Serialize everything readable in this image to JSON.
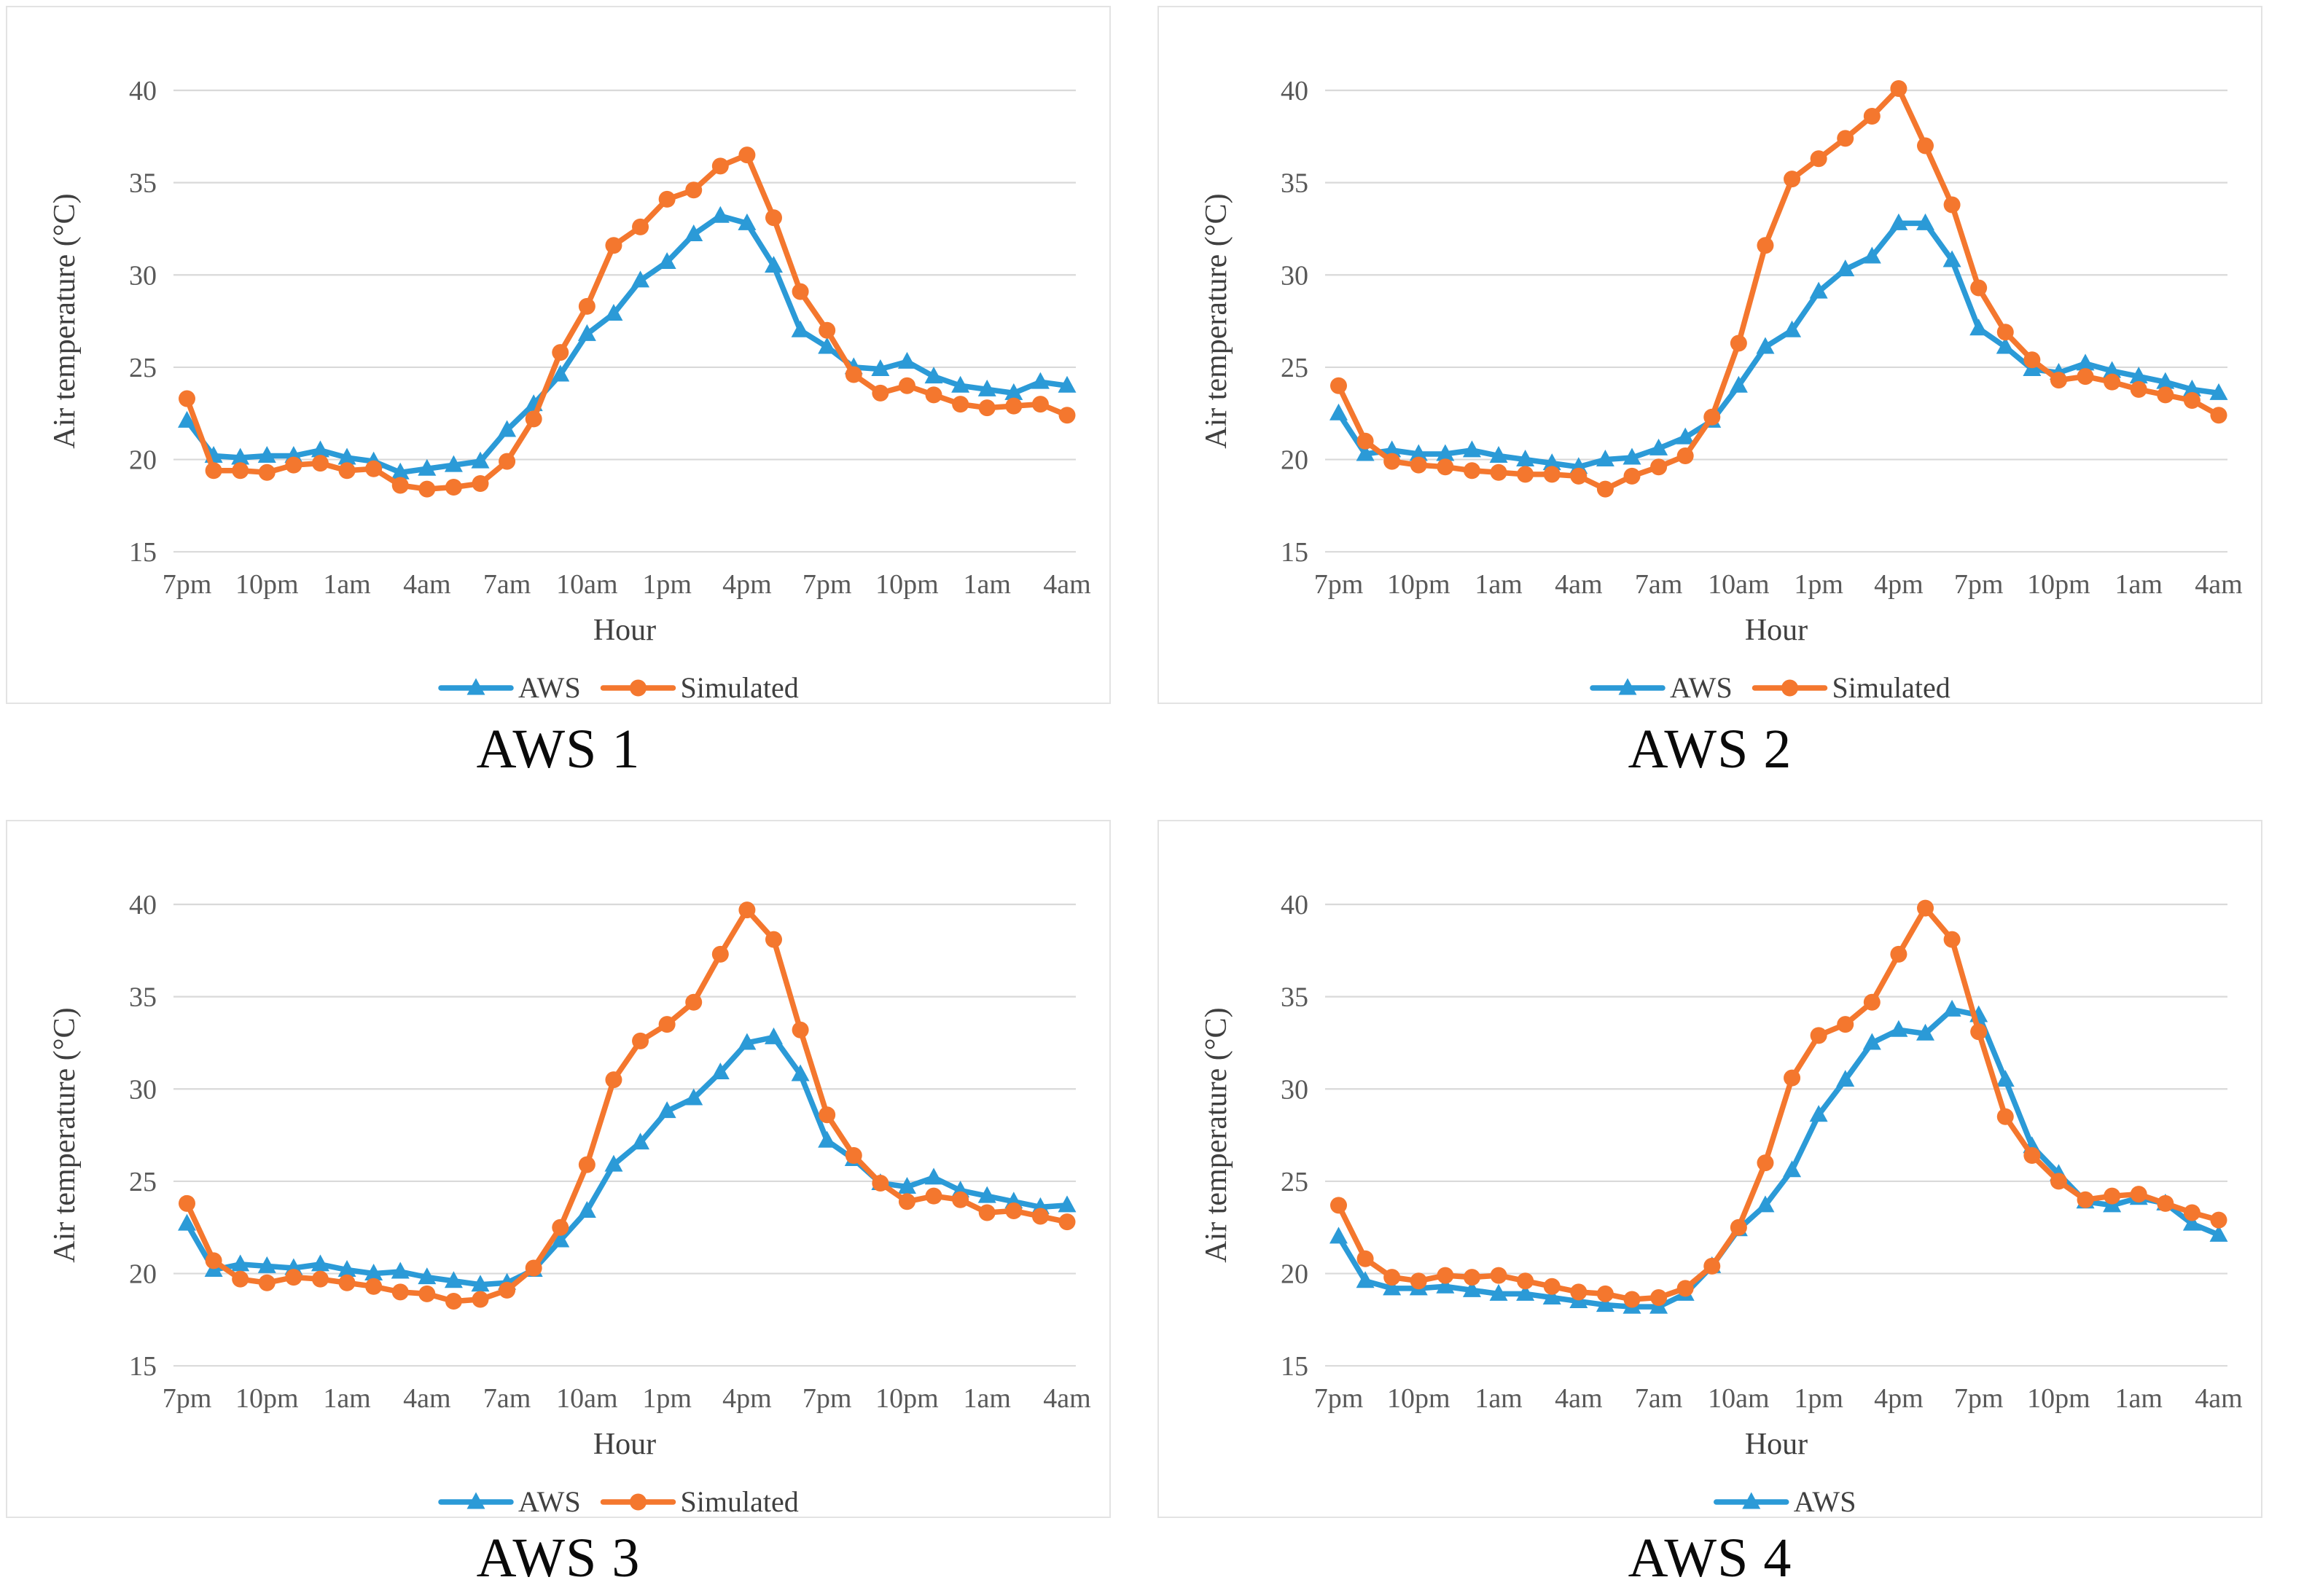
{
  "styles": {
    "series_blue": "#2b9ad7",
    "series_orange": "#f4772e",
    "grid_color": "#d9d9d9",
    "axis_tick_color": "#595959",
    "axis_title_color": "#3f3f3f",
    "legend_text_color": "#404040",
    "caption_color": "#0a0a0a",
    "panel_border_color": "#e3e3e3",
    "background": "#ffffff"
  },
  "chart_data": {
    "type": "line",
    "y_title": "Air temperature (°C)",
    "x_title": "Hour",
    "ylim": [
      15,
      40
    ],
    "y_ticks": [
      40,
      35,
      30,
      25,
      20,
      15
    ],
    "x_tick_labels": [
      "7pm",
      "10pm",
      "1am",
      "4am",
      "7am",
      "10am",
      "1pm",
      "4pm",
      "7pm",
      "10pm",
      "1am",
      "4am"
    ],
    "x_tick_every": 3,
    "grid": true,
    "legend_position": "bottom",
    "categories": [
      "7pm",
      "8pm",
      "9pm",
      "10pm",
      "11pm",
      "12am",
      "1am",
      "2am",
      "3am",
      "4am",
      "5am",
      "6am",
      "7am",
      "8am",
      "9am",
      "10am",
      "11am",
      "12pm",
      "1pm",
      "2pm",
      "3pm",
      "4pm",
      "5pm",
      "6pm",
      "7pm",
      "8pm",
      "9pm",
      "10pm",
      "11pm",
      "12am",
      "1am",
      "2am",
      "3am",
      "4am"
    ],
    "charts": [
      {
        "title": "AWS 1",
        "legend": [
          "AWS",
          "Simulated"
        ],
        "series": [
          {
            "name": "AWS",
            "color_key": "series_blue",
            "marker": "triangle",
            "in_legend": true,
            "values": [
              22.1,
              20.2,
              20.1,
              20.2,
              20.2,
              20.5,
              20.1,
              19.9,
              19.3,
              19.5,
              19.7,
              19.9,
              21.6,
              23.0,
              24.6,
              26.8,
              27.9,
              29.7,
              30.7,
              32.2,
              33.2,
              32.8,
              30.5,
              27.0,
              26.1,
              25.0,
              24.9,
              25.3,
              24.5,
              24.0,
              23.8,
              23.6,
              24.2,
              24.0
            ]
          },
          {
            "name": "Simulated",
            "color_key": "series_orange",
            "marker": "circle",
            "in_legend": true,
            "values": [
              23.3,
              19.4,
              19.4,
              19.3,
              19.7,
              19.8,
              19.4,
              19.5,
              18.6,
              18.4,
              18.5,
              18.7,
              19.9,
              22.2,
              25.8,
              28.3,
              31.6,
              32.6,
              34.1,
              34.6,
              35.9,
              36.5,
              33.1,
              29.1,
              27.0,
              24.6,
              23.6,
              24.0,
              23.5,
              23.0,
              22.8,
              22.9,
              23.0,
              22.4
            ]
          }
        ]
      },
      {
        "title": "AWS 2",
        "legend": [
          "AWS",
          "Simulated"
        ],
        "series": [
          {
            "name": "AWS",
            "color_key": "series_blue",
            "marker": "triangle",
            "in_legend": true,
            "values": [
              22.5,
              20.3,
              20.5,
              20.3,
              20.3,
              20.5,
              20.2,
              20.0,
              19.8,
              19.6,
              20.0,
              20.1,
              20.6,
              21.2,
              22.1,
              24.0,
              26.1,
              27.0,
              29.1,
              30.3,
              31.0,
              32.8,
              32.8,
              30.8,
              27.1,
              26.1,
              24.9,
              24.7,
              25.2,
              24.8,
              24.5,
              24.2,
              23.8,
              23.6
            ]
          },
          {
            "name": "Simulated",
            "color_key": "series_orange",
            "marker": "circle",
            "in_legend": true,
            "values": [
              24.0,
              21.0,
              19.9,
              19.7,
              19.6,
              19.4,
              19.3,
              19.2,
              19.2,
              19.1,
              18.4,
              19.1,
              19.6,
              20.2,
              22.3,
              26.3,
              31.6,
              35.2,
              36.3,
              37.4,
              38.6,
              40.1,
              37.0,
              33.8,
              29.3,
              26.9,
              25.4,
              24.3,
              24.5,
              24.2,
              23.8,
              23.5,
              23.2,
              22.4
            ]
          }
        ]
      },
      {
        "title": "AWS 3",
        "legend": [
          "AWS",
          "Simulated"
        ],
        "series": [
          {
            "name": "AWS",
            "color_key": "series_blue",
            "marker": "triangle",
            "in_legend": true,
            "values": [
              22.7,
              20.2,
              20.5,
              20.4,
              20.3,
              20.5,
              20.2,
              20.0,
              20.1,
              19.8,
              19.6,
              19.4,
              19.5,
              20.2,
              21.8,
              23.4,
              25.9,
              27.1,
              28.8,
              29.5,
              30.9,
              32.5,
              32.8,
              30.8,
              27.2,
              26.2,
              24.9,
              24.7,
              25.2,
              24.5,
              24.2,
              23.9,
              23.6,
              23.7
            ]
          },
          {
            "name": "Simulated",
            "color_key": "series_orange",
            "marker": "circle",
            "in_legend": true,
            "values": [
              23.8,
              20.7,
              19.7,
              19.5,
              19.8,
              19.7,
              19.5,
              19.3,
              19.0,
              18.9,
              18.5,
              18.6,
              19.1,
              20.3,
              22.5,
              25.9,
              30.5,
              32.6,
              33.5,
              34.7,
              37.3,
              39.7,
              38.1,
              33.2,
              28.6,
              26.4,
              24.9,
              23.9,
              24.2,
              24.0,
              23.3,
              23.4,
              23.1,
              22.8
            ]
          }
        ]
      },
      {
        "title": "AWS 4",
        "legend": [
          "AWS"
        ],
        "series": [
          {
            "name": "AWS",
            "color_key": "series_blue",
            "marker": "triangle",
            "in_legend": true,
            "values": [
              22.0,
              19.6,
              19.2,
              19.2,
              19.3,
              19.1,
              18.9,
              18.9,
              18.7,
              18.5,
              18.3,
              18.2,
              18.2,
              18.9,
              20.4,
              22.4,
              23.7,
              25.6,
              28.6,
              30.5,
              32.5,
              33.2,
              33.0,
              34.3,
              34.0,
              30.5,
              26.9,
              25.4,
              23.9,
              23.7,
              24.1,
              23.8,
              22.7,
              22.1
            ]
          },
          {
            "name": "Simulated",
            "color_key": "series_orange",
            "marker": "circle",
            "in_legend": false,
            "values": [
              23.7,
              20.8,
              19.8,
              19.6,
              19.9,
              19.8,
              19.9,
              19.6,
              19.3,
              19.0,
              18.9,
              18.6,
              18.7,
              19.2,
              20.4,
              22.5,
              26.0,
              30.6,
              32.9,
              33.5,
              34.7,
              37.3,
              39.8,
              38.1,
              33.1,
              28.5,
              26.4,
              25.0,
              24.0,
              24.2,
              24.3,
              23.8,
              23.3,
              22.9
            ]
          }
        ]
      }
    ]
  }
}
